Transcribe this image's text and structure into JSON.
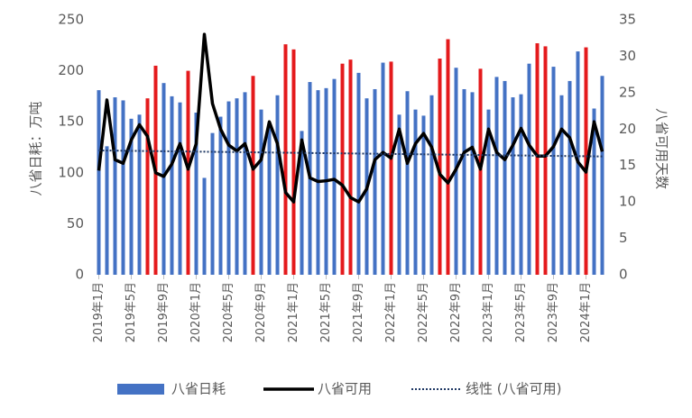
{
  "chart_data": {
    "type": "bar-line",
    "categories": [
      "2019年1月",
      null,
      null,
      null,
      "2019年5月",
      null,
      null,
      null,
      "2019年9月",
      null,
      null,
      null,
      "2020年1月",
      null,
      null,
      null,
      "2020年5月",
      null,
      null,
      null,
      "2020年9月",
      null,
      null,
      null,
      "2021年1月",
      null,
      null,
      null,
      "2021年5月",
      null,
      null,
      null,
      "2021年9月",
      null,
      null,
      null,
      "2022年1月",
      null,
      null,
      null,
      "2022年5月",
      null,
      null,
      null,
      "2022年9月",
      null,
      null,
      null,
      "2023年1月",
      null,
      null,
      null,
      "2023年5月",
      null,
      null,
      null,
      "2023年9月",
      null,
      null,
      null,
      "2024年1月",
      null,
      null
    ],
    "ylabel": "八省日耗：万吨",
    "y2label": "八省可用天数",
    "ylim": [
      0,
      250
    ],
    "yticks": [
      0,
      50,
      100,
      150,
      200,
      250
    ],
    "y2lim": [
      0,
      35
    ],
    "y2ticks": [
      0,
      5,
      10,
      15,
      20,
      25,
      30,
      35
    ],
    "series": [
      {
        "name": "八省日耗",
        "type": "bar",
        "color": "#4472c4",
        "colors": [
          "#4472c4",
          "#4472c4",
          "#4472c4",
          "#4472c4",
          "#4472c4",
          "#4472c4",
          "#e41a1c",
          "#e41a1c",
          "#4472c4",
          "#4472c4",
          "#4472c4",
          "#e41a1c",
          "#4472c4",
          "#4472c4",
          "#4472c4",
          "#4472c4",
          "#4472c4",
          "#4472c4",
          "#4472c4",
          "#e41a1c",
          "#4472c4",
          "#4472c4",
          "#4472c4",
          "#e41a1c",
          "#e41a1c",
          "#4472c4",
          "#4472c4",
          "#4472c4",
          "#4472c4",
          "#4472c4",
          "#e41a1c",
          "#e41a1c",
          "#4472c4",
          "#4472c4",
          "#4472c4",
          "#4472c4",
          "#e41a1c",
          "#4472c4",
          "#4472c4",
          "#4472c4",
          "#4472c4",
          "#4472c4",
          "#e41a1c",
          "#e41a1c",
          "#4472c4",
          "#4472c4",
          "#4472c4",
          "#e41a1c",
          "#4472c4",
          "#4472c4",
          "#4472c4",
          "#4472c4",
          "#4472c4",
          "#4472c4",
          "#e41a1c",
          "#e41a1c",
          "#4472c4",
          "#4472c4",
          "#4472c4",
          "#4472c4",
          "#e41a1c",
          "#4472c4",
          "#4472c4"
        ],
        "values": [
          181,
          126,
          174,
          171,
          153,
          157,
          173,
          205,
          188,
          175,
          169,
          200,
          159,
          95,
          139,
          155,
          170,
          173,
          179,
          195,
          162,
          145,
          176,
          226,
          221,
          141,
          189,
          181,
          183,
          192,
          207,
          211,
          198,
          173,
          182,
          208,
          209,
          157,
          180,
          162,
          156,
          176,
          212,
          231,
          203,
          182,
          179,
          202,
          162,
          194,
          190,
          174,
          177,
          207,
          227,
          224,
          204,
          176,
          190,
          219,
          223,
          163,
          195
        ]
      },
      {
        "name": "八省可用",
        "type": "line",
        "axis": "y2",
        "color": "#000000",
        "values": [
          14.3,
          24,
          15.8,
          15.3,
          18.5,
          20.6,
          19,
          14,
          13.5,
          15.2,
          18,
          14.5,
          18,
          33,
          23.5,
          20,
          17.8,
          17,
          18,
          14.5,
          15.8,
          21,
          18,
          11.3,
          10,
          18.5,
          13.3,
          12.8,
          12.9,
          13.1,
          12.3,
          10.6,
          10,
          11.8,
          15.8,
          16.8,
          16,
          20,
          15.3,
          18,
          19.4,
          17.5,
          13.8,
          12.6,
          14.5,
          16.8,
          17.5,
          14.5,
          20,
          16.8,
          15.8,
          17.8,
          20.1,
          17.8,
          16.3,
          16.3,
          17.6,
          20,
          18.8,
          15.5,
          14.1,
          21,
          16.9
        ]
      },
      {
        "name": "线性 (八省可用)",
        "type": "trend",
        "axis": "y2",
        "color": "#1f3864"
      }
    ]
  }
}
